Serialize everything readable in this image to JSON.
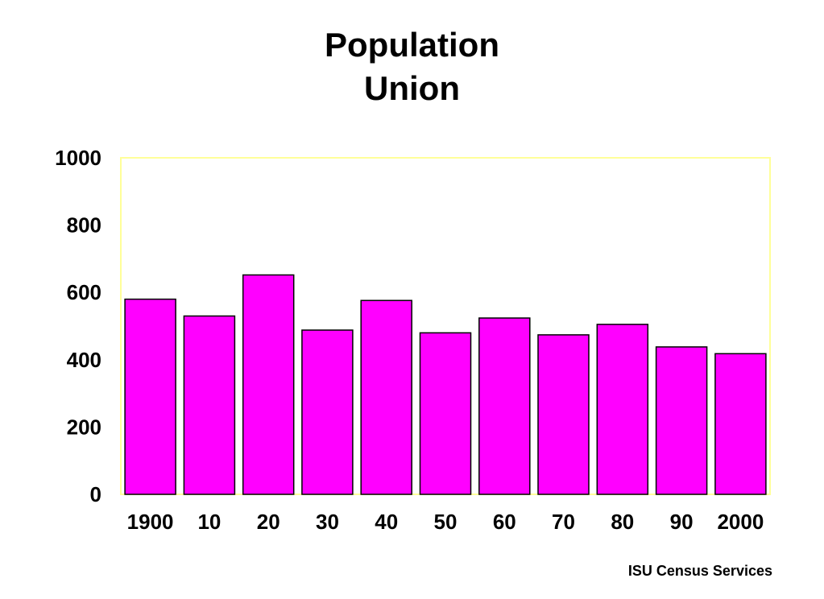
{
  "chart_data": {
    "type": "bar",
    "title_line1": "Population",
    "title_line2": "Union",
    "categories": [
      "1900",
      "10",
      "20",
      "30",
      "40",
      "50",
      "60",
      "70",
      "80",
      "90",
      "2000"
    ],
    "values": [
      580,
      530,
      652,
      488,
      576,
      480,
      524,
      474,
      505,
      438,
      418
    ],
    "yticks": [
      "0",
      "200",
      "400",
      "600",
      "800",
      "1000"
    ],
    "ylim": [
      0,
      1000
    ],
    "xlabel": "",
    "ylabel": "",
    "grid": false,
    "colors": {
      "bar_fill": "#ff00ff",
      "bar_stroke": "#000000",
      "plot_border": "#ffff99"
    }
  },
  "source": "ISU Census Services"
}
